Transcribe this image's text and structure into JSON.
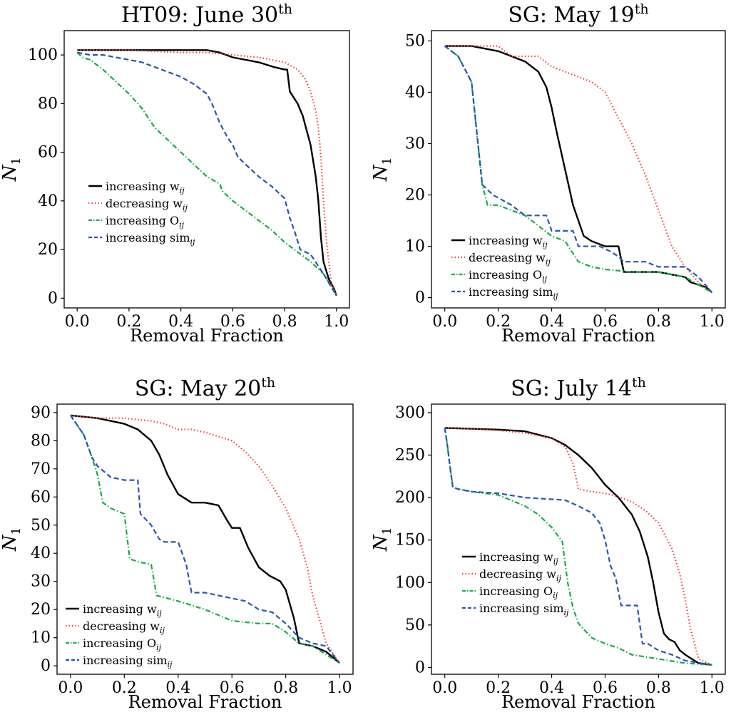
{
  "figure": {
    "colors": {
      "increasing_w": "#000000",
      "decreasing_w": "#e8443a",
      "increasing_O": "#1aaa4a",
      "increasing_sim": "#2a55b0"
    }
  },
  "chart_data": [
    {
      "type": "line",
      "title_main": "HT09: June 30",
      "title_sup": "th",
      "xlabel": "Removal Fraction",
      "ylabel_main": "N",
      "ylabel_sub": "1",
      "xlim": [
        -0.05,
        1.05
      ],
      "ylim": [
        -4,
        110
      ],
      "xticks": [
        0.0,
        0.2,
        0.4,
        0.6,
        0.8,
        1.0
      ],
      "xtick_labels": [
        "0.0",
        "0.2",
        "0.4",
        "0.6",
        "0.8",
        "1.0"
      ],
      "yticks": [
        0,
        20,
        40,
        60,
        80,
        100
      ],
      "ytick_labels": [
        "0",
        "20",
        "40",
        "60",
        "80",
        "100"
      ],
      "legend_position": "center-left",
      "series": [
        {
          "key": "increasing_w",
          "label_main": "increasing w",
          "label_sub": "ij",
          "style": "solid",
          "x": [
            0,
            0.3,
            0.5,
            0.55,
            0.6,
            0.7,
            0.76,
            0.8,
            0.81,
            0.82,
            0.85,
            0.87,
            0.9,
            0.92,
            0.93,
            0.94,
            0.95,
            0.97,
            0.99,
            1.0
          ],
          "y": [
            102,
            102,
            102,
            101,
            99,
            97,
            95,
            94,
            94,
            85,
            80,
            75,
            63,
            50,
            40,
            25,
            15,
            8,
            4,
            1
          ]
        },
        {
          "key": "decreasing_w",
          "label_main": "decreasing w",
          "label_sub": "ij",
          "style": "dotted",
          "x": [
            0,
            0.2,
            0.4,
            0.5,
            0.6,
            0.7,
            0.8,
            0.85,
            0.88,
            0.9,
            0.92,
            0.93,
            0.94,
            0.95,
            0.96,
            0.97,
            0.98,
            1.0
          ],
          "y": [
            102,
            102,
            101,
            101,
            100,
            99,
            97,
            94,
            90,
            85,
            77,
            70,
            58,
            40,
            25,
            15,
            6,
            1
          ]
        },
        {
          "key": "increasing_O",
          "label_main": "increasing O",
          "label_sub": "ij",
          "style": "dashdot",
          "x": [
            0,
            0.02,
            0.05,
            0.1,
            0.15,
            0.2,
            0.25,
            0.3,
            0.35,
            0.4,
            0.45,
            0.5,
            0.55,
            0.56,
            0.6,
            0.65,
            0.7,
            0.75,
            0.8,
            0.85,
            0.9,
            0.95,
            0.98,
            1.0
          ],
          "y": [
            101,
            99,
            98,
            94,
            89,
            84,
            78,
            70,
            65,
            60,
            55,
            50,
            47,
            44,
            40,
            36,
            32,
            28,
            23,
            19,
            15,
            10,
            5,
            1
          ]
        },
        {
          "key": "increasing_sim",
          "label_main": "increasing sim",
          "label_sub": "ij",
          "style": "dashed",
          "x": [
            0,
            0.05,
            0.1,
            0.15,
            0.2,
            0.25,
            0.3,
            0.35,
            0.4,
            0.45,
            0.5,
            0.52,
            0.55,
            0.58,
            0.6,
            0.62,
            0.65,
            0.7,
            0.75,
            0.8,
            0.82,
            0.84,
            0.86,
            0.9,
            0.95,
            1.0
          ],
          "y": [
            101,
            100,
            100,
            99,
            98,
            97,
            95,
            93,
            91,
            88,
            84,
            80,
            72,
            66,
            63,
            58,
            55,
            50,
            46,
            41,
            33,
            27,
            20,
            18,
            10,
            1
          ]
        }
      ]
    },
    {
      "type": "line",
      "title_main": "SG: May 19",
      "title_sup": "th",
      "xlabel": "Removal Fraction",
      "ylabel_main": "N",
      "ylabel_sub": "1",
      "xlim": [
        -0.05,
        1.05
      ],
      "ylim": [
        -2,
        52
      ],
      "xticks": [
        0.0,
        0.2,
        0.4,
        0.6,
        0.8,
        1.0
      ],
      "xtick_labels": [
        "0.0",
        "0.2",
        "0.4",
        "0.6",
        "0.8",
        "1.0"
      ],
      "yticks": [
        0,
        10,
        20,
        30,
        40,
        50
      ],
      "ytick_labels": [
        "0",
        "10",
        "20",
        "30",
        "40",
        "50"
      ],
      "legend_position": "lower-left",
      "series": [
        {
          "key": "increasing_w",
          "label_main": "increasing w",
          "label_sub": "ij",
          "style": "solid",
          "x": [
            0,
            0.1,
            0.2,
            0.25,
            0.3,
            0.35,
            0.38,
            0.4,
            0.42,
            0.45,
            0.48,
            0.5,
            0.52,
            0.55,
            0.6,
            0.65,
            0.67,
            0.7,
            0.8,
            0.9,
            0.92,
            0.98,
            1.0
          ],
          "y": [
            49,
            49,
            48,
            47,
            46,
            44,
            41,
            37,
            32,
            25,
            18,
            15,
            12,
            11,
            10,
            10,
            5,
            5,
            5,
            4,
            3,
            2,
            1
          ]
        },
        {
          "key": "decreasing_w",
          "label_main": "decreasing w",
          "label_sub": "ij",
          "style": "dotted",
          "x": [
            0,
            0.1,
            0.2,
            0.25,
            0.3,
            0.35,
            0.4,
            0.45,
            0.5,
            0.55,
            0.6,
            0.65,
            0.7,
            0.75,
            0.8,
            0.85,
            0.9,
            0.95,
            1.0
          ],
          "y": [
            49,
            49,
            49,
            47,
            47,
            47,
            45,
            44,
            43,
            42,
            40,
            35,
            30,
            24,
            17,
            10,
            6,
            3,
            1
          ]
        },
        {
          "key": "increasing_O",
          "label_main": "increasing O",
          "label_sub": "ij",
          "style": "dashdot",
          "x": [
            0,
            0.05,
            0.1,
            0.12,
            0.14,
            0.16,
            0.2,
            0.25,
            0.3,
            0.35,
            0.4,
            0.45,
            0.5,
            0.55,
            0.6,
            0.7,
            0.8,
            0.9,
            1.0
          ],
          "y": [
            49,
            47,
            42,
            32,
            22,
            18,
            18,
            17,
            16,
            14,
            12,
            11,
            7,
            6,
            5.5,
            5,
            5,
            4,
            1
          ]
        },
        {
          "key": "increasing_sim",
          "label_main": "increasing sim",
          "label_sub": "ij",
          "style": "dashed",
          "x": [
            0,
            0.05,
            0.1,
            0.12,
            0.14,
            0.16,
            0.18,
            0.25,
            0.3,
            0.38,
            0.4,
            0.48,
            0.5,
            0.58,
            0.62,
            0.65,
            0.67,
            0.75,
            0.8,
            0.9,
            0.95,
            1.0
          ],
          "y": [
            49,
            47,
            42,
            32,
            22,
            21,
            20,
            18,
            16,
            16,
            13,
            13,
            10,
            10,
            9,
            8,
            7,
            7,
            6,
            6,
            4,
            1
          ]
        }
      ]
    },
    {
      "type": "line",
      "title_main": "SG: May 20",
      "title_sup": "th",
      "xlabel": "Removal Fraction",
      "ylabel_main": "N",
      "ylabel_sub": "1",
      "xlim": [
        -0.05,
        1.05
      ],
      "ylim": [
        -3,
        93
      ],
      "xticks": [
        0.0,
        0.2,
        0.4,
        0.6,
        0.8,
        1.0
      ],
      "xtick_labels": [
        "0.0",
        "0.2",
        "0.4",
        "0.6",
        "0.8",
        "1.0"
      ],
      "yticks": [
        0,
        10,
        20,
        30,
        40,
        50,
        60,
        70,
        80,
        90
      ],
      "ytick_labels": [
        "0",
        "10",
        "20",
        "30",
        "40",
        "50",
        "60",
        "70",
        "80",
        "90"
      ],
      "legend_position": "lower-left",
      "series": [
        {
          "key": "increasing_w",
          "label_main": "increasing w",
          "label_sub": "ij",
          "style": "solid",
          "x": [
            0,
            0.1,
            0.2,
            0.25,
            0.3,
            0.33,
            0.36,
            0.4,
            0.45,
            0.5,
            0.55,
            0.58,
            0.6,
            0.63,
            0.66,
            0.7,
            0.74,
            0.78,
            0.8,
            0.83,
            0.85,
            0.9,
            0.95,
            1.0
          ],
          "y": [
            89,
            88,
            86,
            84,
            80,
            75,
            68,
            61,
            58,
            58,
            57,
            52,
            49,
            49,
            42,
            35,
            32,
            30,
            27,
            17,
            8,
            7,
            5,
            1
          ]
        },
        {
          "key": "decreasing_w",
          "label_main": "decreasing w",
          "label_sub": "ij",
          "style": "dotted",
          "x": [
            0,
            0.1,
            0.2,
            0.3,
            0.35,
            0.4,
            0.45,
            0.5,
            0.6,
            0.65,
            0.7,
            0.75,
            0.8,
            0.85,
            0.88,
            0.9,
            0.93,
            0.95,
            1.0
          ],
          "y": [
            89,
            88,
            88,
            87,
            86,
            84,
            84,
            83,
            80,
            76,
            71,
            64,
            56,
            45,
            35,
            25,
            15,
            8,
            1
          ]
        },
        {
          "key": "increasing_O",
          "label_main": "increasing O",
          "label_sub": "ij",
          "style": "dashdot",
          "x": [
            0,
            0.05,
            0.08,
            0.1,
            0.12,
            0.15,
            0.2,
            0.22,
            0.25,
            0.3,
            0.32,
            0.4,
            0.5,
            0.6,
            0.7,
            0.75,
            0.8,
            0.85,
            0.9,
            1.0
          ],
          "y": [
            89,
            82,
            74,
            68,
            58,
            56,
            54,
            38,
            37,
            36,
            25,
            23,
            20,
            16,
            15,
            15,
            12,
            8,
            7,
            1
          ]
        },
        {
          "key": "increasing_sim",
          "label_main": "increasing sim",
          "label_sub": "ij",
          "style": "dashed",
          "x": [
            0,
            0.05,
            0.08,
            0.1,
            0.15,
            0.2,
            0.25,
            0.26,
            0.3,
            0.33,
            0.35,
            0.4,
            0.43,
            0.45,
            0.5,
            0.55,
            0.6,
            0.65,
            0.7,
            0.75,
            0.8,
            0.85,
            0.9,
            0.95,
            1.0
          ],
          "y": [
            89,
            82,
            74,
            71,
            67,
            66,
            66,
            54,
            50,
            45,
            44,
            44,
            36,
            26,
            26,
            25,
            24,
            23,
            20,
            19,
            15,
            10,
            8,
            7,
            1
          ]
        }
      ]
    },
    {
      "type": "line",
      "title_main": "SG: July 14",
      "title_sup": "th",
      "xlabel": "Removal Fraction",
      "ylabel_main": "N",
      "ylabel_sub": "1",
      "xlim": [
        -0.05,
        1.05
      ],
      "ylim": [
        -8,
        310
      ],
      "xticks": [
        0.0,
        0.2,
        0.4,
        0.6,
        0.8,
        1.0
      ],
      "xtick_labels": [
        "0.0",
        "0.2",
        "0.4",
        "0.6",
        "0.8",
        "1.0"
      ],
      "yticks": [
        0,
        50,
        100,
        150,
        200,
        250,
        300
      ],
      "ytick_labels": [
        "0",
        "50",
        "100",
        "150",
        "200",
        "250",
        "300"
      ],
      "legend_position": "lower-left",
      "series": [
        {
          "key": "increasing_w",
          "label_main": "increasing w",
          "label_sub": "ij",
          "style": "solid",
          "x": [
            0,
            0.1,
            0.2,
            0.3,
            0.4,
            0.45,
            0.5,
            0.55,
            0.6,
            0.65,
            0.7,
            0.73,
            0.76,
            0.78,
            0.8,
            0.82,
            0.84,
            0.86,
            0.88,
            0.9,
            0.95,
            1.0
          ],
          "y": [
            282,
            281,
            280,
            278,
            270,
            262,
            250,
            235,
            215,
            200,
            180,
            160,
            130,
            100,
            65,
            40,
            33,
            30,
            20,
            15,
            5,
            3
          ]
        },
        {
          "key": "decreasing_w",
          "label_main": "decreasing w",
          "label_sub": "ij",
          "style": "dotted",
          "x": [
            0,
            0.1,
            0.2,
            0.3,
            0.4,
            0.45,
            0.48,
            0.5,
            0.55,
            0.6,
            0.65,
            0.7,
            0.75,
            0.8,
            0.85,
            0.88,
            0.9,
            0.92,
            0.95,
            1.0
          ],
          "y": [
            282,
            281,
            279,
            276,
            270,
            260,
            240,
            210,
            207,
            205,
            201,
            195,
            185,
            170,
            140,
            110,
            80,
            45,
            10,
            3
          ]
        },
        {
          "key": "increasing_O",
          "label_main": "increasing O",
          "label_sub": "ij",
          "style": "dashdot",
          "x": [
            0,
            0.01,
            0.02,
            0.03,
            0.05,
            0.1,
            0.2,
            0.3,
            0.35,
            0.4,
            0.44,
            0.46,
            0.48,
            0.5,
            0.52,
            0.55,
            0.6,
            0.65,
            0.7,
            0.8,
            0.9,
            1.0
          ],
          "y": [
            282,
            260,
            235,
            212,
            210,
            207,
            203,
            190,
            180,
            165,
            148,
            100,
            70,
            52,
            45,
            35,
            28,
            23,
            15,
            10,
            5,
            3
          ]
        },
        {
          "key": "increasing_sim",
          "label_main": "increasing sim",
          "label_sub": "ij",
          "style": "dashed",
          "x": [
            0,
            0.01,
            0.02,
            0.03,
            0.05,
            0.1,
            0.2,
            0.3,
            0.45,
            0.5,
            0.55,
            0.58,
            0.6,
            0.62,
            0.64,
            0.66,
            0.68,
            0.72,
            0.74,
            0.76,
            0.8,
            0.85,
            0.9,
            1.0
          ],
          "y": [
            282,
            260,
            235,
            212,
            210,
            207,
            205,
            200,
            197,
            190,
            182,
            170,
            150,
            120,
            105,
            73,
            73,
            73,
            28,
            28,
            20,
            15,
            8,
            3
          ]
        }
      ]
    }
  ]
}
